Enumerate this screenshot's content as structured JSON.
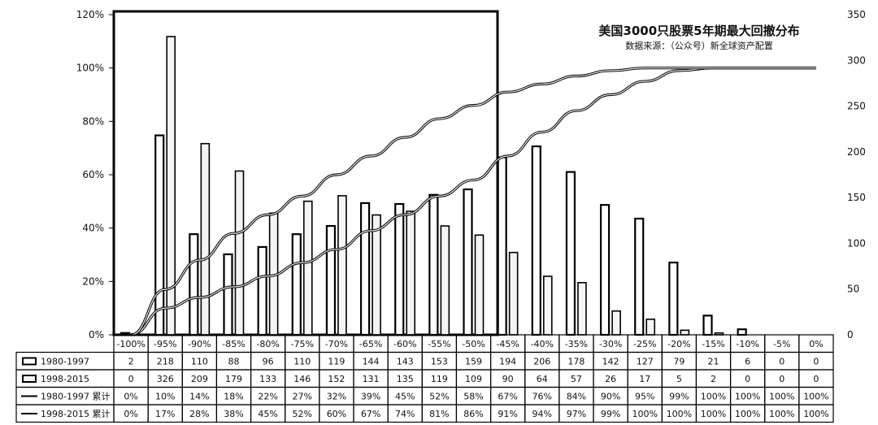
{
  "chart_data": {
    "type": "bar",
    "title": "美国3000只股票5年期最大回撤分布",
    "subtitle": "数据来源：（公众号）新全球资产配置",
    "categories": [
      "-100%",
      "-95%",
      "-90%",
      "-85%",
      "-80%",
      "-75%",
      "-70%",
      "-65%",
      "-60%",
      "-55%",
      "-50%",
      "-45%",
      "-40%",
      "-35%",
      "-30%",
      "-25%",
      "-20%",
      "-15%",
      "-10%",
      "-5%",
      "0%"
    ],
    "series": [
      {
        "name": "1980-1997",
        "kind": "bar",
        "axis": "right",
        "values": [
          2,
          218,
          110,
          88,
          96,
          110,
          119,
          144,
          143,
          153,
          159,
          194,
          206,
          178,
          142,
          127,
          79,
          21,
          6,
          0,
          0
        ],
        "labels": [
          "2",
          "218",
          "110",
          "88",
          "96",
          "110",
          "119",
          "144",
          "143",
          "153",
          "159",
          "194",
          "206",
          "178",
          "142",
          "127",
          "79",
          "21",
          "6",
          "0",
          "0"
        ]
      },
      {
        "name": "1998-2015",
        "kind": "bar",
        "axis": "right",
        "values": [
          0,
          326,
          209,
          179,
          133,
          146,
          152,
          131,
          135,
          119,
          109,
          90,
          64,
          57,
          26,
          17,
          5,
          2,
          0,
          0,
          0
        ],
        "labels": [
          "0",
          "326",
          "209",
          "179",
          "133",
          "146",
          "152",
          "131",
          "135",
          "119",
          "109",
          "90",
          "64",
          "57",
          "26",
          "17",
          "5",
          "2",
          "0",
          "0",
          "0"
        ]
      },
      {
        "name": "1980-1997 累计",
        "kind": "line",
        "axis": "left",
        "values": [
          0,
          10,
          14,
          18,
          22,
          27,
          32,
          39,
          45,
          52,
          58,
          67,
          76,
          84,
          90,
          95,
          99,
          100,
          100,
          100,
          100
        ],
        "labels": [
          "0%",
          "10%",
          "14%",
          "18%",
          "22%",
          "27%",
          "32%",
          "39%",
          "45%",
          "52%",
          "58%",
          "67%",
          "76%",
          "84%",
          "90%",
          "95%",
          "99%",
          "100%",
          "100%",
          "100%",
          "100%"
        ]
      },
      {
        "name": "1998-2015 累计",
        "kind": "line",
        "axis": "left",
        "values": [
          0,
          17,
          28,
          38,
          45,
          52,
          60,
          67,
          74,
          81,
          86,
          91,
          94,
          97,
          99,
          100,
          100,
          100,
          100,
          100,
          100
        ],
        "labels": [
          "0%",
          "17%",
          "28%",
          "38%",
          "45%",
          "52%",
          "60%",
          "67%",
          "74%",
          "81%",
          "86%",
          "91%",
          "94%",
          "97%",
          "99%",
          "100%",
          "100%",
          "100%",
          "100%",
          "100%",
          "100%"
        ]
      }
    ],
    "y_left": {
      "range": [
        0,
        120
      ],
      "ticks": [
        "0%",
        "20%",
        "40%",
        "60%",
        "80%",
        "100%",
        "120%"
      ]
    },
    "y_right": {
      "range": [
        0,
        350
      ],
      "ticks": [
        "0",
        "50",
        "100",
        "150",
        "200",
        "250",
        "300",
        "350"
      ]
    },
    "legend": "data-table-below"
  }
}
